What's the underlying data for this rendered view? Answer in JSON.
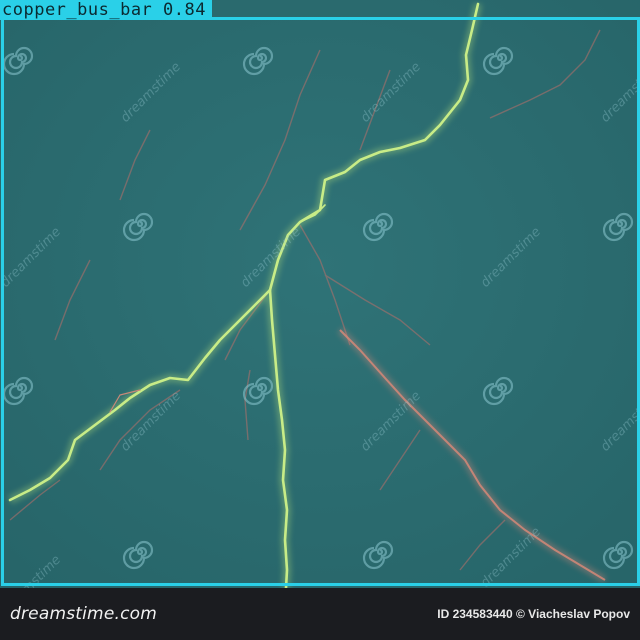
{
  "image": {
    "subject": "lightning",
    "background_color": "#2b6e72",
    "bolt_color": "#b9e07a",
    "glow_color": "#c77d72"
  },
  "detection": {
    "label": "copper_bus_bar 0.84",
    "box_color": "#2ad0e8"
  },
  "watermark": {
    "text": "dreamstime",
    "icon": "spiral-logo-icon"
  },
  "footer": {
    "brand": "dreamstime.com",
    "credit": "ID 234583440 © Viacheslav Popov"
  }
}
